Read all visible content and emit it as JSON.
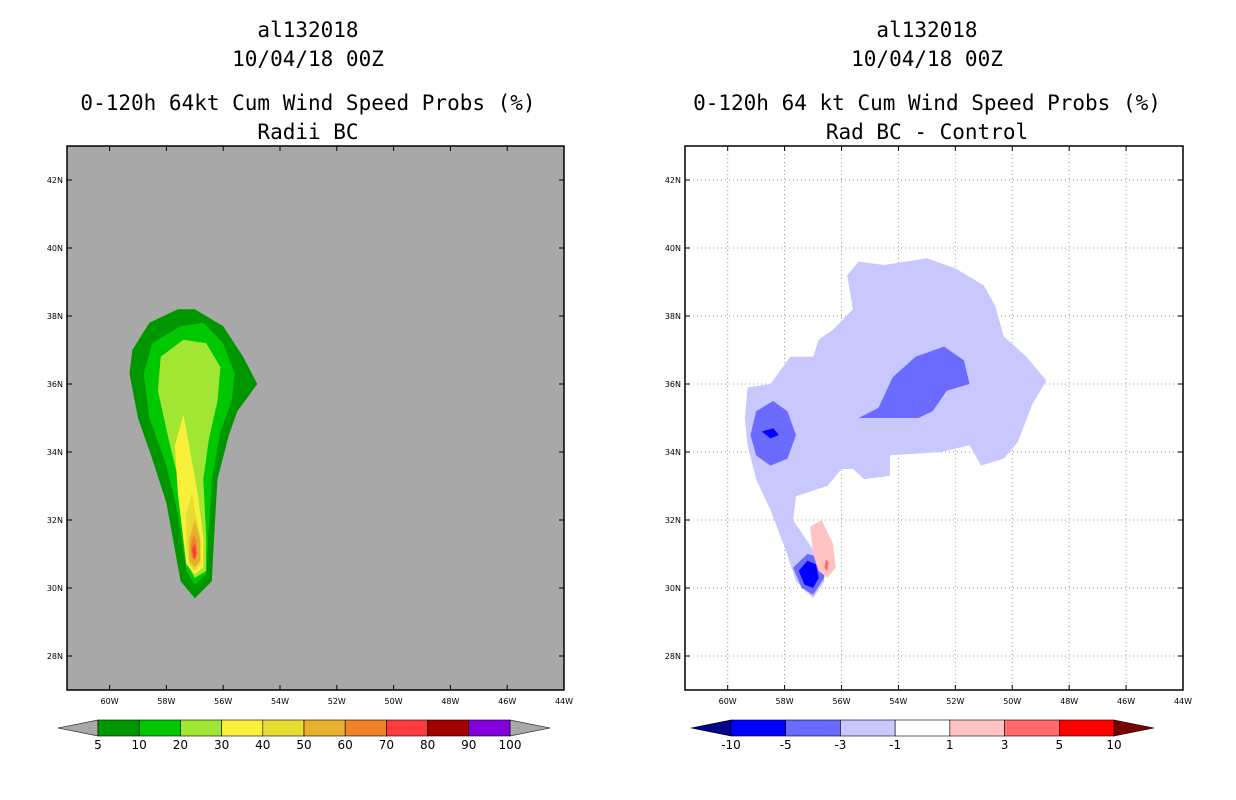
{
  "chart_data": [
    {
      "type": "filled-contour-map",
      "id": "left",
      "title_lines": [
        "al132018",
        "10/04/18 00Z",
        "0-120h 64kt Cum Wind Speed Probs (%)",
        "Radii BC"
      ],
      "background": "#a8a8a8",
      "x_ticks": [
        "60W",
        "58W",
        "56W",
        "54W",
        "52W",
        "50W",
        "48W",
        "46W",
        "44W"
      ],
      "y_ticks": [
        "42N",
        "40N",
        "38N",
        "36N",
        "34N",
        "32N",
        "30N",
        "28N"
      ],
      "x_range_deg_west": [
        61.5,
        44
      ],
      "y_range_deg_north": [
        27,
        43
      ],
      "colorbar": {
        "labels": [
          "5",
          "10",
          "20",
          "30",
          "40",
          "50",
          "60",
          "70",
          "80",
          "90",
          "100"
        ],
        "colors": [
          "#009600",
          "#00c800",
          "#a0e632",
          "#faf03c",
          "#e6dc32",
          "#e6af2d",
          "#f08228",
          "#fa3c3c",
          "#a00000",
          "#8200dc"
        ],
        "under_color": "#a8a8a8",
        "over_color": "#a8a8a8"
      },
      "contours": [
        {
          "level": "5-10",
          "color": "#009600",
          "points": [
            [
              57,
              29.7
            ],
            [
              56.4,
              30.2
            ],
            [
              56.3,
              31.8
            ],
            [
              56.2,
              33.2
            ],
            [
              55.8,
              34.5
            ],
            [
              55.5,
              35.2
            ],
            [
              54.8,
              36
            ],
            [
              55.3,
              36.8
            ],
            [
              56,
              37.7
            ],
            [
              57,
              38.2
            ],
            [
              57.6,
              38.2
            ],
            [
              58.6,
              37.8
            ],
            [
              59.2,
              37
            ],
            [
              59.3,
              36.3
            ],
            [
              59,
              35
            ],
            [
              58.5,
              33.8
            ],
            [
              58,
              32.5
            ],
            [
              57.5,
              30.2
            ]
          ]
        },
        {
          "level": "10-20",
          "color": "#00c800",
          "points": [
            [
              57,
              30.1
            ],
            [
              56.6,
              30.4
            ],
            [
              56.5,
              31.8
            ],
            [
              56.4,
              33.2
            ],
            [
              56.1,
              34.6
            ],
            [
              55.7,
              35.5
            ],
            [
              55.6,
              36.3
            ],
            [
              56,
              37.2
            ],
            [
              56.7,
              37.8
            ],
            [
              57.5,
              37.7
            ],
            [
              58.5,
              37.2
            ],
            [
              58.8,
              36.3
            ],
            [
              58.6,
              35
            ],
            [
              58,
              33.6
            ],
            [
              57.6,
              32.2
            ],
            [
              57.3,
              30.5
            ]
          ]
        },
        {
          "level": "20-30",
          "color": "#a0e632",
          "points": [
            [
              57,
              30.3
            ],
            [
              56.6,
              30.5
            ],
            [
              56.6,
              31.5
            ],
            [
              56.7,
              33.2
            ],
            [
              56.5,
              34.4
            ],
            [
              56.2,
              35.5
            ],
            [
              56.1,
              36.5
            ],
            [
              56.6,
              37.2
            ],
            [
              57.4,
              37.3
            ],
            [
              58.2,
              36.8
            ],
            [
              58.3,
              35.8
            ],
            [
              57.9,
              34.3
            ],
            [
              57.4,
              32.6
            ],
            [
              57.2,
              30.6
            ]
          ]
        },
        {
          "level": "30-40",
          "color": "#faf03c",
          "points": [
            [
              57,
              30.4
            ],
            [
              56.7,
              30.6
            ],
            [
              56.7,
              31.5
            ],
            [
              56.9,
              32.8
            ],
            [
              57.2,
              34.2
            ],
            [
              57.4,
              35.1
            ],
            [
              57.7,
              34.2
            ],
            [
              57.6,
              32.8
            ],
            [
              57.3,
              30.7
            ]
          ]
        },
        {
          "level": "40-50",
          "color": "#e6dc32",
          "points": [
            [
              57,
              30.5
            ],
            [
              56.8,
              30.7
            ],
            [
              56.8,
              31.5
            ],
            [
              57,
              32.3
            ],
            [
              57.1,
              32.8
            ],
            [
              57.3,
              32.2
            ],
            [
              57.3,
              31.2
            ],
            [
              57.2,
              30.7
            ]
          ]
        },
        {
          "level": "50-60",
          "color": "#e6af2d",
          "points": [
            [
              57,
              30.6
            ],
            [
              56.8,
              30.8
            ],
            [
              56.8,
              31.4
            ],
            [
              57,
              32
            ],
            [
              57.2,
              31.4
            ],
            [
              57.2,
              30.8
            ]
          ]
        },
        {
          "level": "60-70",
          "color": "#f08228",
          "points": [
            [
              57,
              30.8
            ],
            [
              56.9,
              31
            ],
            [
              56.95,
              31.4
            ],
            [
              57.05,
              31.55
            ],
            [
              57.15,
              31.2
            ],
            [
              57.1,
              30.9
            ]
          ]
        },
        {
          "level": "70-80",
          "color": "#fa3c3c",
          "points": [
            [
              57,
              30.85
            ],
            [
              56.95,
              31.05
            ],
            [
              57,
              31.3
            ],
            [
              57.1,
              31.15
            ],
            [
              57.05,
              30.9
            ]
          ]
        }
      ]
    },
    {
      "type": "filled-contour-map",
      "id": "right",
      "title_lines": [
        "al132018",
        "10/04/18 00Z",
        "0-120h 64 kt Cum Wind Speed Probs (%)",
        "Rad BC - Control"
      ],
      "background": "#ffffff",
      "grid": "dotted",
      "x_ticks": [
        "60W",
        "58W",
        "56W",
        "54W",
        "52W",
        "50W",
        "48W",
        "46W",
        "44W"
      ],
      "y_ticks": [
        "42N",
        "40N",
        "38N",
        "36N",
        "34N",
        "32N",
        "30N",
        "28N"
      ],
      "x_range_deg_west": [
        61.5,
        44
      ],
      "y_range_deg_north": [
        27,
        43
      ],
      "colorbar": {
        "labels": [
          "-10",
          "-5",
          "-3",
          "-1",
          "1",
          "3",
          "5",
          "10"
        ],
        "colors": [
          "#0000ff",
          "#6b6bff",
          "#c8c8ff",
          "#ffffff",
          "#ffc3c3",
          "#ff6b6b",
          "#ff0000"
        ],
        "under_color": "#00008c",
        "over_color": "#780000"
      },
      "contours": [
        {
          "level": "-3 to -1",
          "color": "#c8c8ff",
          "points": [
            [
              57,
              29.7
            ],
            [
              56.6,
              30.2
            ],
            [
              56.9,
              31
            ],
            [
              57.3,
              31.5
            ],
            [
              57.7,
              32
            ],
            [
              57.6,
              32.7
            ],
            [
              56.5,
              33
            ],
            [
              56,
              33.5
            ],
            [
              55.6,
              33.5
            ],
            [
              55.2,
              33.2
            ],
            [
              54.3,
              33.3
            ],
            [
              54.3,
              33.9
            ],
            [
              52.5,
              34
            ],
            [
              51.5,
              34.2
            ],
            [
              51.1,
              33.6
            ],
            [
              50.3,
              33.8
            ],
            [
              49.8,
              34.3
            ],
            [
              49.3,
              35.4
            ],
            [
              48.8,
              36.1
            ],
            [
              49.5,
              36.8
            ],
            [
              50.3,
              37.4
            ],
            [
              50.6,
              38.3
            ],
            [
              51,
              38.9
            ],
            [
              52,
              39.4
            ],
            [
              53,
              39.7
            ],
            [
              54.5,
              39.5
            ],
            [
              55.4,
              39.6
            ],
            [
              55.8,
              39.2
            ],
            [
              55.6,
              38.2
            ],
            [
              56.3,
              37.6
            ],
            [
              56.8,
              37.3
            ],
            [
              57,
              36.8
            ],
            [
              57.8,
              36.8
            ],
            [
              58.5,
              36
            ],
            [
              59.3,
              35.9
            ],
            [
              59.4,
              35
            ],
            [
              59.3,
              34.2
            ],
            [
              59,
              33.2
            ],
            [
              58.5,
              32.3
            ],
            [
              58,
              31.2
            ],
            [
              57.6,
              30.2
            ]
          ]
        },
        {
          "level": "-5 to -3",
          "color": "#6b6bff",
          "points": [
            [
              58.5,
              33.6
            ],
            [
              59,
              33.9
            ],
            [
              59.2,
              34.5
            ],
            [
              59,
              35.2
            ],
            [
              58.4,
              35.5
            ],
            [
              57.9,
              35.2
            ],
            [
              57.6,
              34.5
            ],
            [
              57.9,
              33.8
            ]
          ]
        },
        {
          "level": "-5 to -3",
          "color": "#6b6bff",
          "points": [
            [
              55.4,
              35
            ],
            [
              54.7,
              35.3
            ],
            [
              54.2,
              36.2
            ],
            [
              53.4,
              36.8
            ],
            [
              52.4,
              37.1
            ],
            [
              51.7,
              36.7
            ],
            [
              51.5,
              36
            ],
            [
              52.3,
              35.8
            ],
            [
              52.8,
              35.2
            ],
            [
              53.3,
              35
            ]
          ]
        },
        {
          "level": "-5 to -3",
          "color": "#6b6bff",
          "points": [
            [
              57,
              29.8
            ],
            [
              56.6,
              30.3
            ],
            [
              56.7,
              30.9
            ],
            [
              57.2,
              31
            ],
            [
              57.7,
              30.6
            ],
            [
              57.4,
              30
            ]
          ]
        },
        {
          "level": "-10 to -5",
          "color": "#0000ff",
          "points": [
            [
              57,
              30
            ],
            [
              56.8,
              30.3
            ],
            [
              56.9,
              30.7
            ],
            [
              57.2,
              30.8
            ],
            [
              57.5,
              30.5
            ],
            [
              57.3,
              30.1
            ]
          ]
        },
        {
          "level": "-10 to -5",
          "color": "#0000ff",
          "points": [
            [
              58.5,
              34.4
            ],
            [
              58.2,
              34.5
            ],
            [
              58.4,
              34.7
            ],
            [
              58.8,
              34.6
            ]
          ]
        },
        {
          "level": "1 to 3",
          "color": "#ffc3c3",
          "points": [
            [
              56.5,
              30.3
            ],
            [
              56.2,
              30.6
            ],
            [
              56.3,
              31.3
            ],
            [
              56.7,
              32
            ],
            [
              57.1,
              31.8
            ],
            [
              57,
              31
            ],
            [
              56.8,
              30.5
            ]
          ]
        },
        {
          "level": "3 to 5",
          "color": "#ff6b6b",
          "points": [
            [
              56.5,
              30.5
            ],
            [
              56.45,
              30.75
            ],
            [
              56.55,
              30.85
            ],
            [
              56.6,
              30.6
            ]
          ]
        }
      ]
    }
  ]
}
